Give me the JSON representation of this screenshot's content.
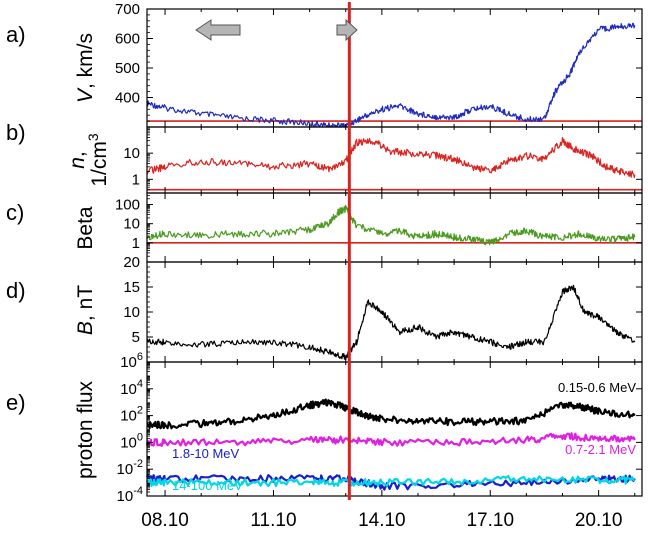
{
  "chart_data": {
    "type": "line",
    "x_ticks": [
      "08.10",
      "11.10",
      "14.10",
      "17.10",
      "20.10"
    ],
    "marker_line": {
      "x_day": 13.1,
      "color": "#d9231e"
    },
    "arrows": [
      "left-arrow",
      "right-arrow"
    ],
    "panels": [
      {
        "id": "a",
        "label": "a)",
        "ylabel_parts": [
          "V",
          ", km/s"
        ],
        "scale": "linear",
        "ylim": [
          300,
          700
        ],
        "yticks": [
          "700",
          "600",
          "500",
          "400"
        ],
        "ytick_values": [
          700,
          600,
          500,
          400
        ],
        "hline": 320,
        "series": [
          {
            "color": "#1f2bbf",
            "x": [
              7.5,
              8,
              9,
              10,
              11,
              12,
              12.5,
              13,
              13.5,
              14,
              14.5,
              15,
              15.5,
              16,
              16.5,
              17,
              17.5,
              18,
              18.5,
              18.8,
              19.2,
              19.5,
              20,
              20.5,
              21
            ],
            "y": [
              380,
              365,
              345,
              330,
              322,
              312,
              305,
              304,
              335,
              360,
              372,
              345,
              335,
              332,
              360,
              370,
              345,
              325,
              330,
              420,
              480,
              560,
              630,
              640,
              645
            ]
          }
        ]
      },
      {
        "id": "b",
        "label": "b)",
        "ylabel_parts": [
          "n",
          ",",
          "1/cm",
          "3"
        ],
        "scale": "log",
        "ylim": [
          0.3,
          100
        ],
        "yticks": [
          "10",
          "1"
        ],
        "ytick_values": [
          10,
          1
        ],
        "hline": 0.4,
        "series": [
          {
            "color": "#d9231e",
            "x": [
              7.5,
              8,
              9,
              10,
              11,
              12,
              12.5,
              13,
              13.3,
              13.8,
              14.2,
              14.8,
              15.5,
              16,
              16.5,
              17,
              17.5,
              18,
              18.5,
              19,
              19.3,
              19.8,
              20.2,
              20.6,
              21
            ],
            "y": [
              2,
              3,
              5,
              4,
              3,
              4,
              2.5,
              5,
              25,
              28,
              12,
              10,
              8,
              6,
              3,
              2,
              5,
              8,
              6,
              30,
              15,
              8,
              3,
              2,
              1.5
            ]
          }
        ]
      },
      {
        "id": "c",
        "label": "c)",
        "ylabel_parts": [
          "Beta"
        ],
        "scale": "log",
        "ylim": [
          0.1,
          400
        ],
        "yticks": [
          "100",
          "10",
          "1"
        ],
        "ytick_values": [
          100,
          10,
          1
        ],
        "hline": 1,
        "series": [
          {
            "color": "#4a9a1e",
            "x": [
              7.5,
              8,
              9,
              10,
              11,
              12,
              12.5,
              12.8,
              13,
              13.3,
              14,
              14.5,
              15,
              15.5,
              16,
              16.5,
              17,
              17.5,
              18,
              18.5,
              19,
              19.5,
              20,
              20.5,
              21
            ],
            "y": [
              2,
              3,
              2.5,
              3,
              3,
              5,
              10,
              40,
              60,
              8,
              3,
              4,
              2,
              3,
              2,
              1.5,
              1,
              3,
              4,
              2,
              2,
              3,
              1.5,
              1.5,
              2
            ]
          }
        ]
      },
      {
        "id": "d",
        "label": "d)",
        "ylabel_parts": [
          "B",
          ", nT"
        ],
        "scale": "linear",
        "ylim": [
          0,
          20
        ],
        "yticks": [
          "20",
          "15",
          "10",
          "5"
        ],
        "ytick_values": [
          20,
          15,
          10,
          5
        ],
        "series": [
          {
            "color": "#000000",
            "x": [
              7.5,
              8,
              9,
              10,
              11,
              12,
              12.5,
              13,
              13.3,
              13.6,
              14,
              14.5,
              15,
              15.5,
              16,
              16.5,
              17,
              17.5,
              18,
              18.5,
              19,
              19.3,
              19.6,
              20,
              20.5,
              21
            ],
            "y": [
              4,
              4,
              3.5,
              4,
              4,
              3,
              2,
              1,
              4,
              12,
              10,
              6,
              7,
              5,
              6,
              5,
              4,
              3,
              4,
              4,
              14,
              15,
              10,
              9,
              6,
              4
            ]
          }
        ]
      },
      {
        "id": "e",
        "label": "e)",
        "ylabel_parts": [
          "proton flux"
        ],
        "scale": "log",
        "ylim": [
          0.0001,
          1000000
        ],
        "yticks": [
          "10",
          "10",
          "10",
          "10",
          "10",
          "10"
        ],
        "ytick_exp": [
          "6",
          "4",
          "2",
          "0",
          "-2",
          "-4"
        ],
        "ytick_values": [
          1000000,
          10000,
          100,
          1,
          0.01,
          0.0001
        ],
        "series": [
          {
            "name": "0.15-0.6 MeV",
            "color": "#000000",
            "x": [
              7.5,
              8,
              9,
              10,
              11,
              12,
              12.5,
              13,
              13.5,
              14,
              15,
              16,
              17,
              18,
              19,
              19.5,
              20,
              21
            ],
            "y": [
              20,
              20,
              25,
              40,
              100,
              600,
              1000,
              400,
              100,
              60,
              40,
              35,
              35,
              40,
              600,
              500,
              200,
              100
            ]
          },
          {
            "name": "0.7-2.1 MeV",
            "color": "#e020e0",
            "x": [
              7.5,
              8,
              10,
              12,
              13,
              14,
              16,
              18,
              19,
              20,
              21
            ],
            "y": [
              1,
              1,
              1,
              1.5,
              1.5,
              1,
              1,
              1.5,
              3,
              2,
              1.5
            ]
          },
          {
            "name": "1.8-10 MeV",
            "color": "#1a20c8",
            "x": [
              7.5,
              8,
              10,
              12,
              13,
              14,
              16,
              18,
              20,
              21
            ],
            "y": [
              0.002,
              0.002,
              0.002,
              0.002,
              0.002,
              0.0005,
              0.0007,
              0.001,
              0.002,
              0.002
            ]
          },
          {
            "name": "14-100 MeV",
            "color": "#00d7e6",
            "x": [
              7.5,
              8,
              10,
              12,
              13,
              14,
              16,
              18,
              20,
              21
            ],
            "y": [
              0.001,
              0.001,
              0.001,
              0.001,
              0.001,
              0.001,
              0.0012,
              0.002,
              0.0015,
              0.0015
            ]
          }
        ]
      }
    ]
  }
}
